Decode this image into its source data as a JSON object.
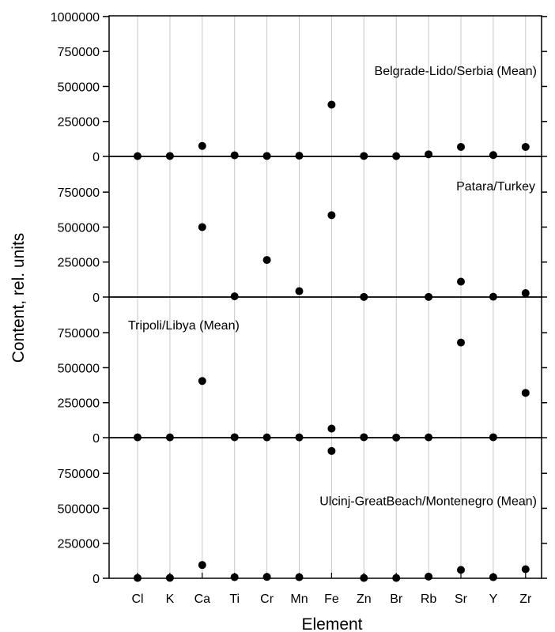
{
  "chart_data": {
    "type": "scatter",
    "xlabel": "Element",
    "ylabel": "Content, rel. units",
    "categories": [
      "Cl",
      "K",
      "Ca",
      "Ti",
      "Cr",
      "Mn",
      "Fe",
      "Zn",
      "Br",
      "Rb",
      "Sr",
      "Y",
      "Zr"
    ],
    "grid": "vertical",
    "panels": [
      {
        "label": "Belgrade-Lido/Serbia (Mean)",
        "label_position": "top-right",
        "ylim": [
          0,
          1000000
        ],
        "yticks": [
          0,
          250000,
          500000,
          750000,
          1000000
        ],
        "ytick_labels": [
          "0",
          "250000",
          "500000",
          "750000",
          "1000000"
        ],
        "values": [
          2000,
          3000,
          75000,
          8000,
          3000,
          5000,
          370000,
          3000,
          2000,
          15000,
          68000,
          10000,
          68000
        ]
      },
      {
        "label": "Patara/Turkey",
        "label_position": "top-right",
        "ylim": [
          0,
          1000000
        ],
        "yticks": [
          0,
          250000,
          500000,
          750000
        ],
        "ytick_labels": [
          "0",
          "250000",
          "500000",
          "750000"
        ],
        "values": [
          null,
          null,
          500000,
          5000,
          265000,
          42000,
          585000,
          1000,
          null,
          1000,
          110000,
          2000,
          28000
        ]
      },
      {
        "label": "Tripoli/Libya (Mean)",
        "label_position": "top-left",
        "ylim": [
          0,
          1000000
        ],
        "yticks": [
          0,
          250000,
          500000,
          750000
        ],
        "ytick_labels": [
          "0",
          "250000",
          "500000",
          "750000"
        ],
        "values": [
          2000,
          2000,
          405000,
          3000,
          2000,
          2000,
          65000,
          3000,
          1000,
          2000,
          680000,
          3000,
          320000
        ]
      },
      {
        "label": "Ulcinj-GreatBeach/Montenegro (Mean)",
        "label_position": "center-right",
        "ylim": [
          0,
          1000000
        ],
        "yticks": [
          0,
          250000,
          500000,
          750000
        ],
        "ytick_labels": [
          "0",
          "250000",
          "500000",
          "750000"
        ],
        "values": [
          2000,
          3000,
          95000,
          8000,
          10000,
          8000,
          910000,
          2000,
          2000,
          12000,
          60000,
          8000,
          65000
        ]
      }
    ]
  }
}
